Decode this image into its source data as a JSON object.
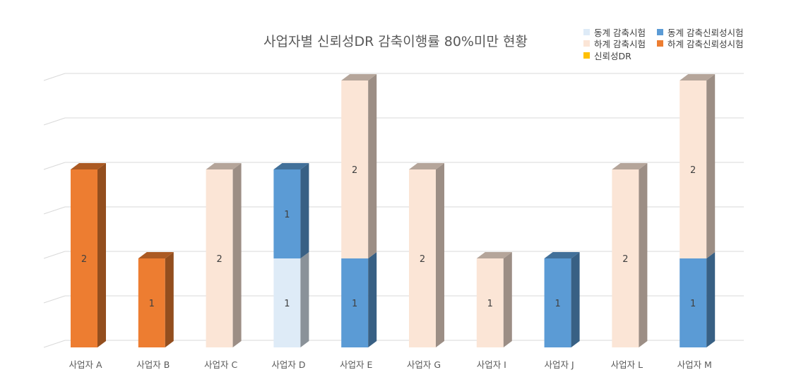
{
  "chart_data": {
    "type": "bar",
    "stacked": true,
    "three_d": true,
    "title": "사업자별 신뢰성DR 감축이행률 80%미만 현황",
    "xlabel": "",
    "ylabel": "",
    "ylim": [
      0,
      3
    ],
    "y_tick_labels_shown": false,
    "grid": true,
    "legend_position": "top-right",
    "categories": [
      "사업자 A",
      "사업자 B",
      "사업자 C",
      "사업자 D",
      "사업자 E",
      "사업자 G",
      "사업자 I",
      "사업자 J",
      "사업자 L",
      "사업자 M"
    ],
    "series": [
      {
        "name": "동계 감축시험",
        "color": "#DEEBF7",
        "values": [
          0,
          0,
          0,
          1,
          0,
          0,
          0,
          0,
          0,
          0
        ]
      },
      {
        "name": "동계 감축신뢰성시험",
        "color": "#5B9BD5",
        "values": [
          0,
          0,
          0,
          1,
          1,
          0,
          0,
          1,
          0,
          1
        ]
      },
      {
        "name": "하계 감축시험",
        "color": "#FBE5D6",
        "values": [
          0,
          0,
          2,
          0,
          2,
          2,
          1,
          0,
          2,
          2
        ]
      },
      {
        "name": "하계 감축신뢰성시험",
        "color": "#ED7D31",
        "values": [
          2,
          1,
          0,
          0,
          0,
          0,
          0,
          0,
          0,
          0
        ]
      },
      {
        "name": "신뢰성DR",
        "color": "#FFC000",
        "values": [
          0,
          0,
          0,
          0,
          0,
          0,
          0,
          0,
          0,
          0
        ]
      }
    ]
  }
}
